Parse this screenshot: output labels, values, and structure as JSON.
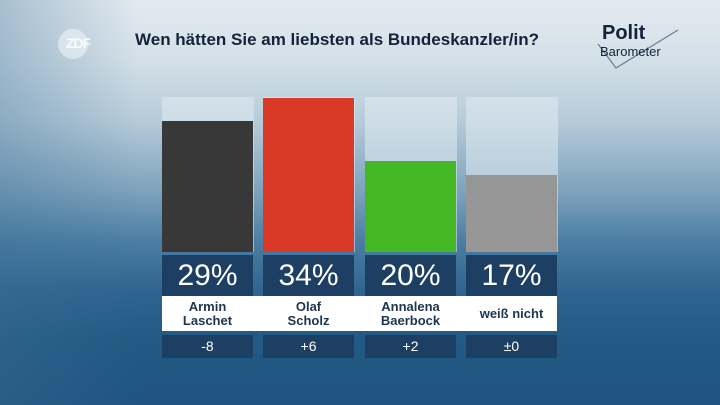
{
  "header": {
    "broadcaster_logo": "ZDF",
    "title": "Wen hätten Sie am liebsten als Bundeskanzler/in?",
    "brand_line1": "Polit",
    "brand_line2": "Barometer"
  },
  "chart_data": {
    "type": "bar",
    "title": "Wen hätten Sie am liebsten als Bundeskanzler/in?",
    "categories": [
      "Armin Laschet",
      "Olaf Scholz",
      "Annalena Baerbock",
      "weiß nicht"
    ],
    "category_lines": [
      [
        "Armin",
        "Laschet"
      ],
      [
        "Olaf",
        "Scholz"
      ],
      [
        "Annalena",
        "Baerbock"
      ],
      [
        "weiß nicht"
      ]
    ],
    "values": [
      29,
      34,
      20,
      17
    ],
    "value_labels": [
      "29%",
      "34%",
      "20%",
      "17%"
    ],
    "changes": [
      "-8",
      "+6",
      "+2",
      "±0"
    ],
    "colors": [
      "#383838",
      "#d93a27",
      "#44b824",
      "#969696"
    ],
    "unit": "%",
    "ylim": [
      0,
      34
    ],
    "xlabel": "",
    "ylabel": "",
    "grid": false,
    "legend": "none"
  }
}
